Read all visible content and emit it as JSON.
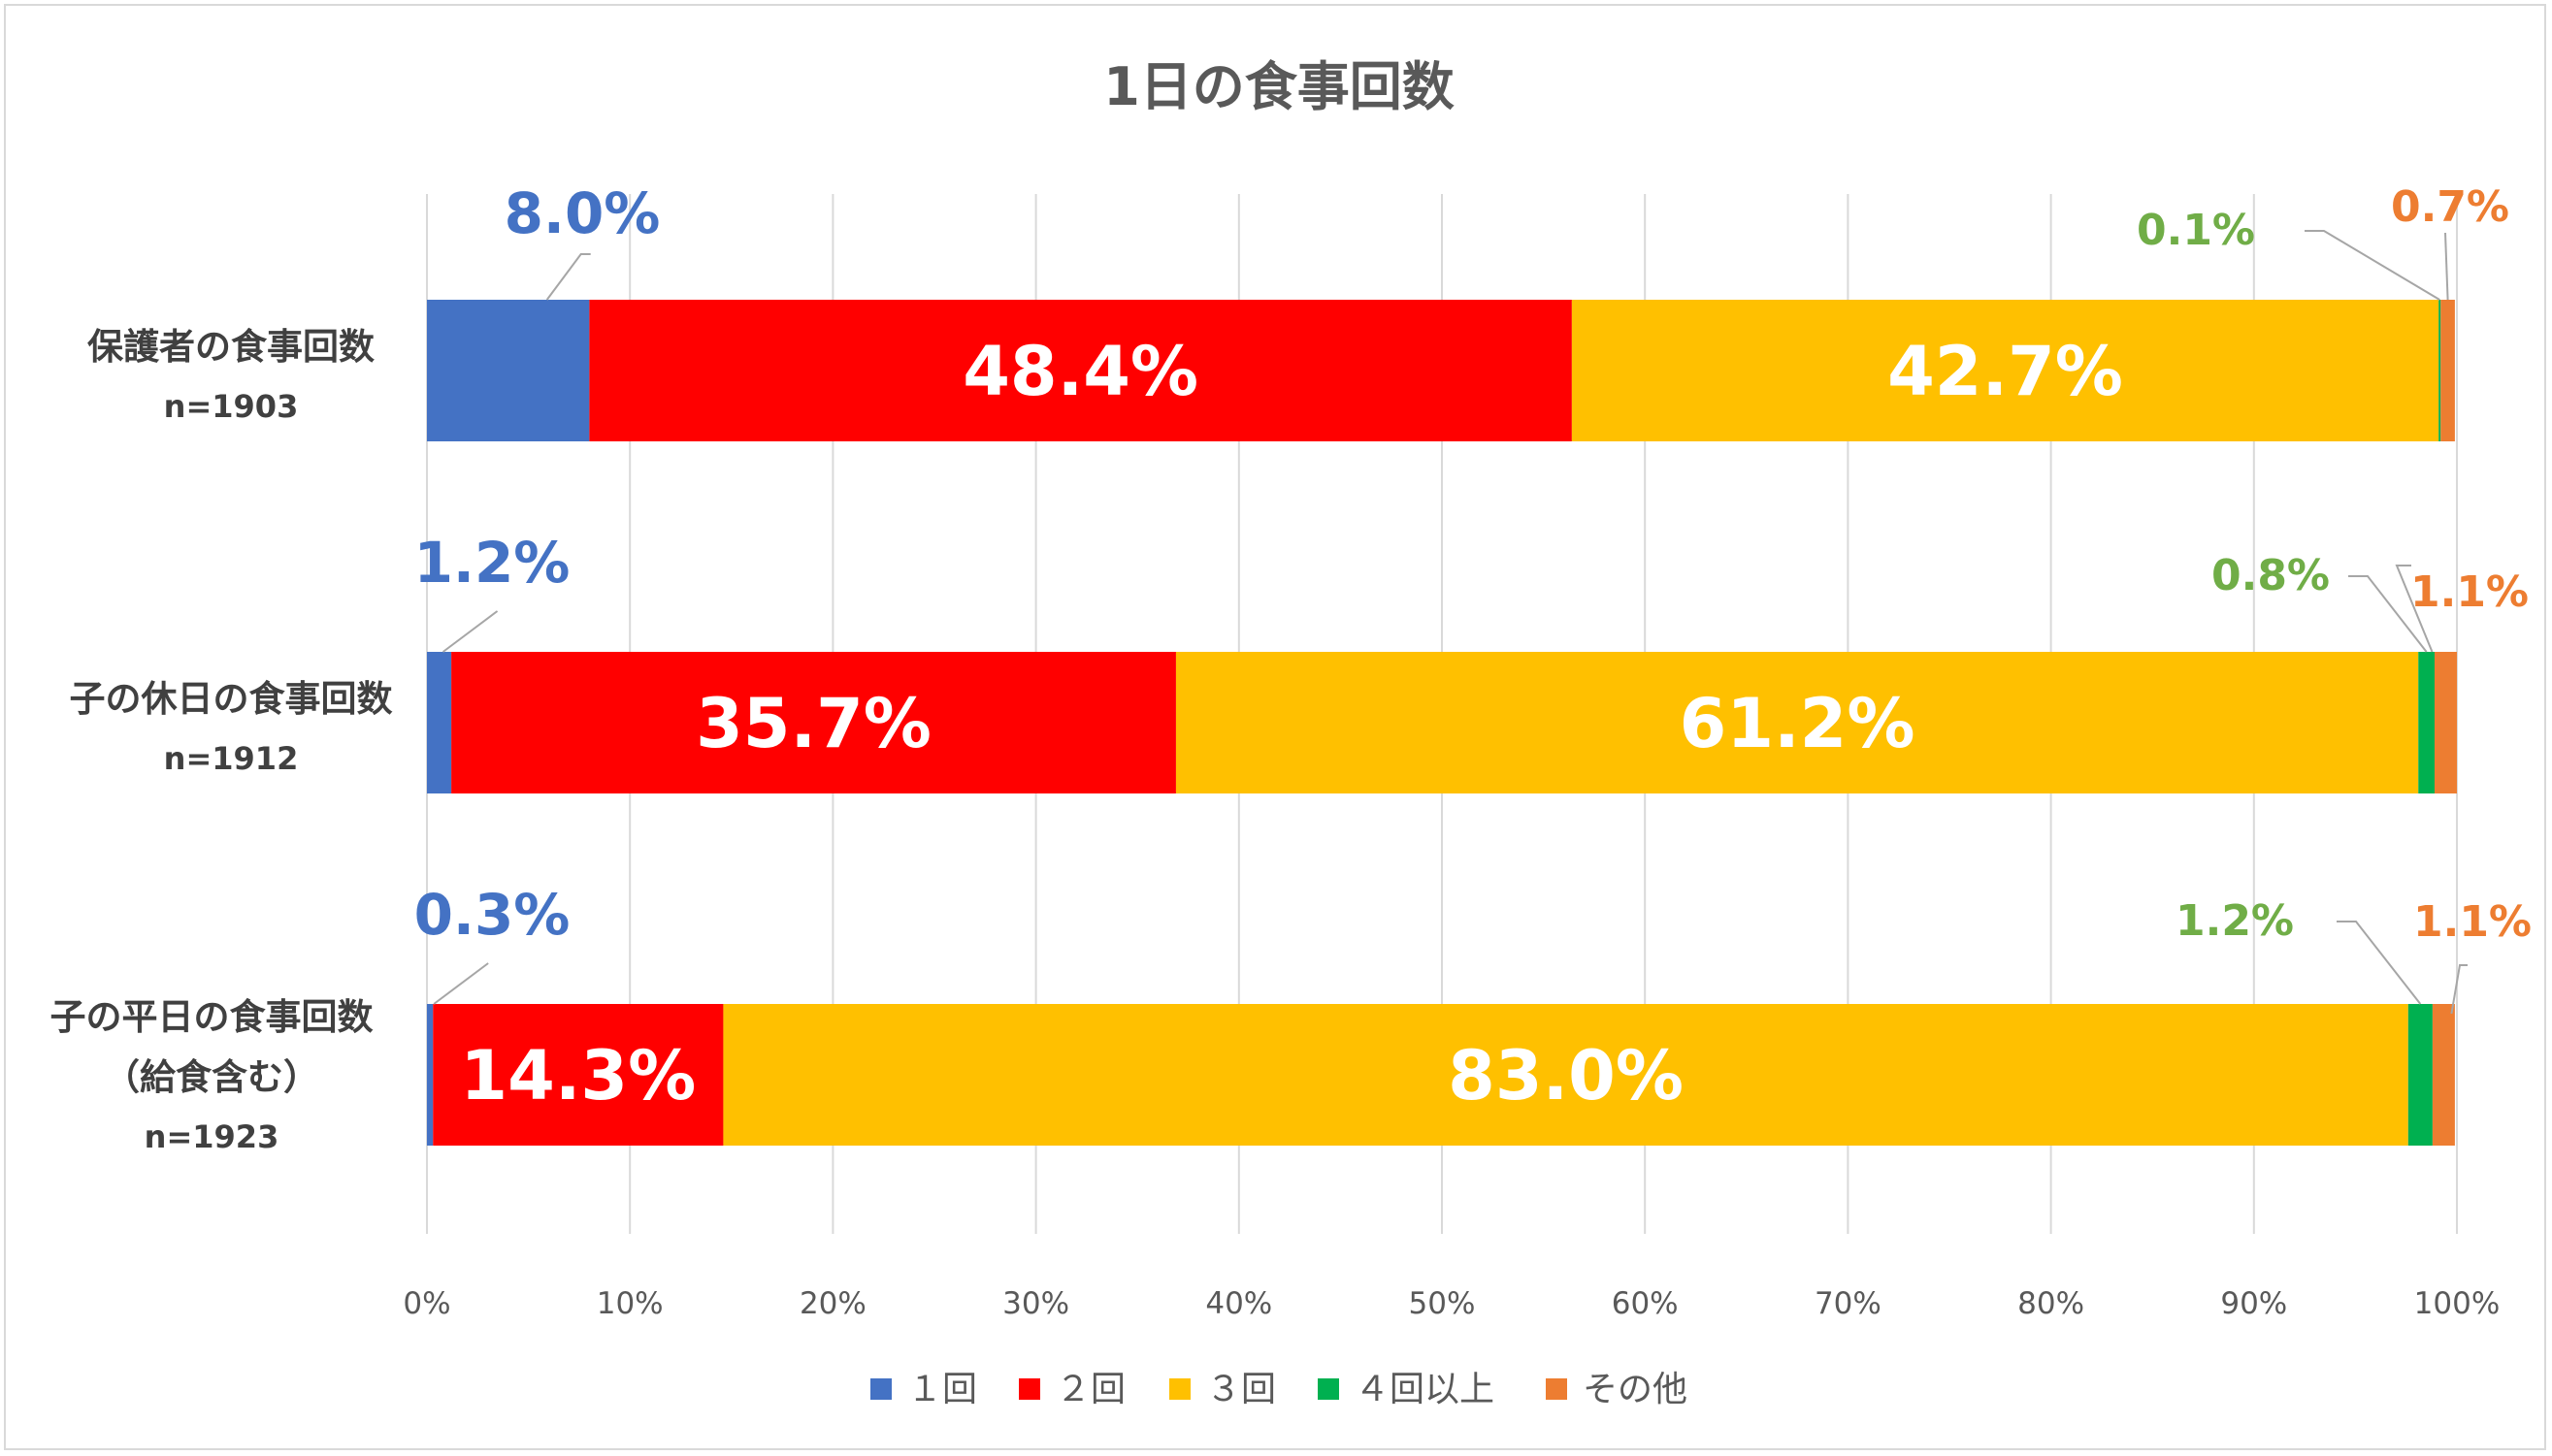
{
  "chart_data": {
    "type": "bar",
    "orientation": "horizontal",
    "stacked": "percent",
    "title": "1日の食事回数",
    "categories": [
      {
        "label_lines": [
          "保護者の食事回数"
        ],
        "n": "n=1903"
      },
      {
        "label_lines": [
          "子の休日の食事回数"
        ],
        "n": "n=1912"
      },
      {
        "label_lines": [
          "子の平日の食事回数",
          "（給食含む）"
        ],
        "n": "n=1923"
      }
    ],
    "series": [
      {
        "name": "１回",
        "color": "#4472C4",
        "values": [
          8.0,
          1.2,
          0.3
        ],
        "labels": [
          "8.0%",
          "1.2%",
          "0.3%"
        ]
      },
      {
        "name": "２回",
        "color": "#FF0000",
        "values": [
          48.4,
          35.7,
          14.3
        ],
        "labels": [
          "48.4%",
          "35.7%",
          "14.3%"
        ]
      },
      {
        "name": "３回",
        "color": "#FFC000",
        "values": [
          42.7,
          61.2,
          83.0
        ],
        "labels": [
          "42.7%",
          "61.2%",
          "83.0%"
        ]
      },
      {
        "name": "４回以上",
        "color": "#00B050",
        "values": [
          0.1,
          0.8,
          1.2
        ],
        "labels": [
          "0.1%",
          "0.8%",
          "1.2%"
        ]
      },
      {
        "name": "その他",
        "color": "#ED7D31",
        "values": [
          0.7,
          1.1,
          1.1
        ],
        "labels": [
          "0.7%",
          "1.1%",
          "1.1%"
        ]
      }
    ],
    "label_colors": {
      "1": "#4472C4",
      "4": "#70AD47",
      "5": "#ED7D31"
    },
    "x_ticks": [
      "0%",
      "10%",
      "20%",
      "30%",
      "40%",
      "50%",
      "60%",
      "70%",
      "80%",
      "90%",
      "100%"
    ],
    "xlim": [
      0,
      100
    ],
    "grid": "vertical",
    "legend": "bottom"
  }
}
